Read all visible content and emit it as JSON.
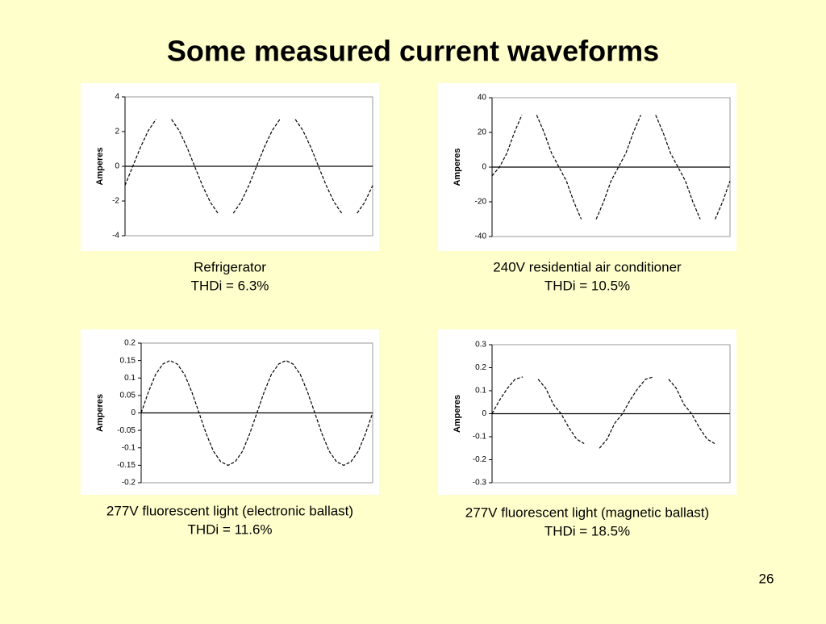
{
  "slide": {
    "title": "Some measured current waveforms",
    "page_number": "26"
  },
  "chart_data": [
    {
      "type": "line",
      "ylabel": "Amperes",
      "caption": [
        "Refrigerator",
        "THDi = 6.3%"
      ],
      "color": "#000000",
      "ylim": [
        -4,
        4
      ],
      "yticks": [
        -4,
        -2,
        0,
        2,
        4
      ],
      "values": [
        -1.1,
        0,
        1.1,
        2.05,
        2.7,
        null,
        2.7,
        2.05,
        1.1,
        0,
        -1.1,
        -2.05,
        -2.7,
        null,
        -2.7,
        -2.05,
        -1.1,
        0,
        1.1,
        2.05,
        2.7,
        null,
        2.7,
        2.05,
        1.1,
        0,
        -1.1,
        -2.05,
        -2.7,
        null,
        -2.7,
        -2.05,
        -1.1
      ]
    },
    {
      "type": "line",
      "ylabel": "Amperes",
      "caption": [
        "240V residential air conditioner",
        "THDi = 10.5%"
      ],
      "color": "#000000",
      "ylim": [
        -40,
        40
      ],
      "yticks": [
        -40,
        -20,
        0,
        20,
        40
      ],
      "values": [
        -5,
        0,
        8,
        20,
        30,
        null,
        30,
        20,
        8,
        0,
        -8,
        -20,
        -30,
        null,
        -30,
        -20,
        -8,
        0,
        8,
        20,
        30,
        null,
        30,
        20,
        8,
        0,
        -8,
        -20,
        -30,
        null,
        -30,
        -20,
        -8
      ]
    },
    {
      "type": "line",
      "ylabel": "Amperes",
      "caption": [
        "277V fluorescent light (electronic ballast)",
        "THDi = 11.6%"
      ],
      "color": "#000000",
      "ylim": [
        -0.2,
        0.2
      ],
      "yticks": [
        -0.2,
        -0.15,
        -0.1,
        -0.05,
        0,
        0.05,
        0.1,
        0.15,
        0.2
      ],
      "values": [
        0,
        0.06,
        0.11,
        0.14,
        0.15,
        0.14,
        0.11,
        0.06,
        0,
        -0.06,
        -0.11,
        -0.14,
        -0.15,
        -0.14,
        -0.11,
        -0.06,
        0,
        0.06,
        0.11,
        0.14,
        0.15,
        0.14,
        0.11,
        0.06,
        0,
        -0.06,
        -0.11,
        -0.14,
        -0.15,
        -0.14,
        -0.11,
        -0.06,
        0
      ]
    },
    {
      "type": "line",
      "ylabel": "Amperes",
      "caption": [
        "277V fluorescent light (magnetic ballast)",
        "THDi = 18.5%"
      ],
      "color": "#000000",
      "ylim": [
        -0.3,
        0.3
      ],
      "yticks": [
        -0.3,
        -0.2,
        -0.1,
        0,
        0.1,
        0.2,
        0.3
      ],
      "values": [
        0,
        0.06,
        0.11,
        0.15,
        0.16,
        null,
        0.15,
        0.11,
        0.04,
        0,
        -0.06,
        -0.11,
        -0.13,
        null,
        -0.15,
        -0.11,
        -0.04,
        0,
        0.06,
        0.11,
        0.15,
        0.16,
        null,
        0.15,
        0.11,
        0.04,
        0,
        -0.06,
        -0.11,
        -0.13,
        null,
        -0.15
      ]
    }
  ]
}
